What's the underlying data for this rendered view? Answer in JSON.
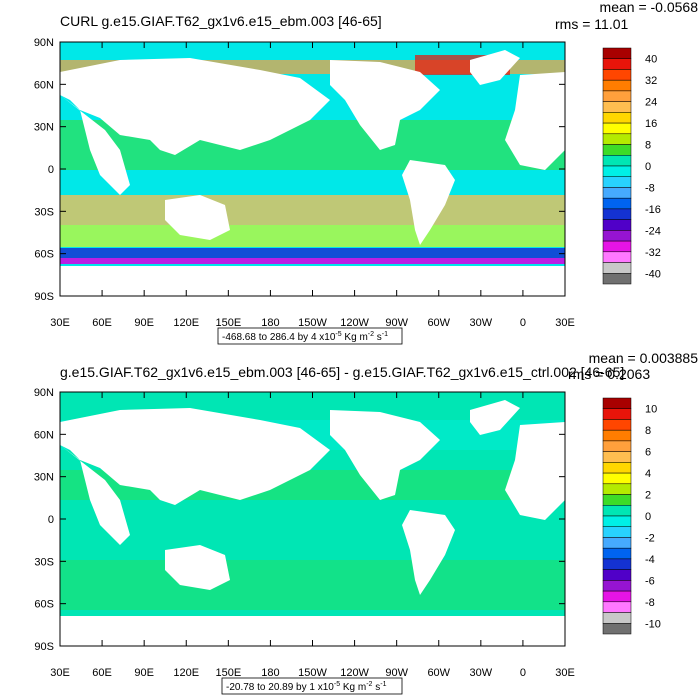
{
  "ticks": {
    "lat": [
      "90N",
      "60N",
      "30N",
      "0",
      "30S",
      "60S",
      "90S"
    ],
    "lon": [
      "30E",
      "60E",
      "90E",
      "120E",
      "150E",
      "180",
      "150W",
      "120W",
      "90W",
      "60W",
      "30W",
      "0",
      "30E"
    ]
  },
  "panels": [
    {
      "title": "CURL g.e15.GIAF.T62_gx1v6.e15_ebm.003 [46-65]",
      "stats": {
        "mean": "mean = -0.0568",
        "rms": "rms = 11.01"
      },
      "range_label": {
        "pre": "-468.68 to 286.4 by 4 x10",
        "exp": "-5",
        "post": " Kg m",
        "exp2": "-2",
        "post2": " s",
        "exp3": "-1"
      },
      "colorbar_labels": [
        "40",
        "32",
        "24",
        "16",
        "8",
        "0",
        "-8",
        "-16",
        "-24",
        "-32",
        "-40"
      ],
      "colorbar_colors": [
        "#a80000",
        "#e8140a",
        "#ff4600",
        "#ff7d00",
        "#ffa03c",
        "#ffbe50",
        "#ffd700",
        "#ffff00",
        "#b4eb00",
        "#3cdc28",
        "#00e6b4",
        "#00f0e6",
        "#28d2ff",
        "#46aaff",
        "#0064f0",
        "#1432d2",
        "#5000c8",
        "#9614d2",
        "#e614e6",
        "#ff78ff",
        "#c8c8c8",
        "#707070"
      ],
      "field": {
        "base": "#00e8e8",
        "alt": "#3cdc28",
        "warm": "#ffbe50"
      }
    },
    {
      "title": "g.e15.GIAF.T62_gx1v6.e15_ebm.003 [46-65] - g.e15.GIAF.T62_gx1v6.e15_ctrl.002 [46-65]",
      "stats": {
        "mean": "mean = 0.003885",
        "rms": "rms = 0.2063"
      },
      "range_label": {
        "pre": "-20.78 to 20.89 by 1 x10",
        "exp": "-5",
        "post": " Kg m",
        "exp2": "-2",
        "post2": " s",
        "exp3": "-1"
      },
      "colorbar_labels": [
        "10",
        "8",
        "6",
        "4",
        "2",
        "0",
        "-2",
        "-4",
        "-6",
        "-8",
        "-10"
      ],
      "colorbar_colors": [
        "#a80000",
        "#e8140a",
        "#ff4600",
        "#ff7d00",
        "#ffa03c",
        "#ffbe50",
        "#ffd700",
        "#ffff00",
        "#b4eb00",
        "#3cdc28",
        "#00e6b4",
        "#00f0e6",
        "#28d2ff",
        "#46aaff",
        "#0064f0",
        "#1432d2",
        "#5000c8",
        "#9614d2",
        "#e614e6",
        "#ff78ff",
        "#c8c8c8",
        "#707070"
      ],
      "field": {
        "base": "#00e6b4",
        "alt": "#3cdc28",
        "warm": "#00f0e6"
      }
    }
  ]
}
